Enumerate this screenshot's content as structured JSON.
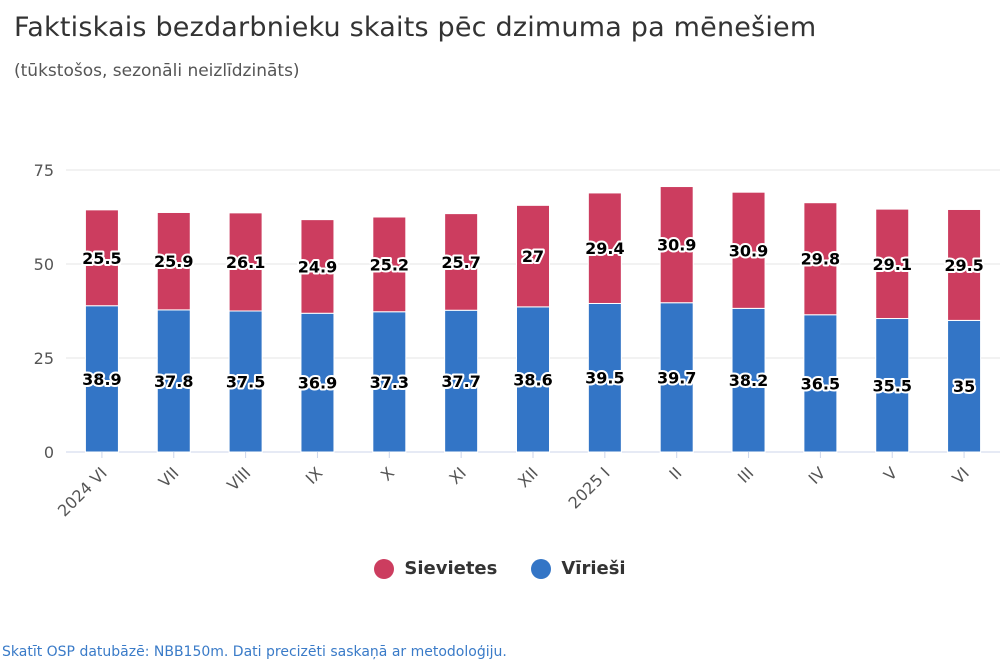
{
  "chart_data": {
    "type": "bar",
    "stacked": true,
    "title": "Faktiskais bezdarbnieku skaits pēc dzimuma pa mēnešiem",
    "subtitle": "(tūkstošos, sezonāli neizlīdzināts)",
    "categories": [
      "2024 VI",
      "VII",
      "VIII",
      "IX",
      "X",
      "XI",
      "XII",
      "2025 I",
      "II",
      "III",
      "IV",
      "V",
      "VI"
    ],
    "series": [
      {
        "name": "Vīrieši",
        "color": "#3375c6",
        "values": [
          38.9,
          37.8,
          37.5,
          36.9,
          37.3,
          37.7,
          38.6,
          39.5,
          39.7,
          38.2,
          36.5,
          35.5,
          35
        ]
      },
      {
        "name": "Sievietes",
        "color": "#cc3d5f",
        "values": [
          25.5,
          25.9,
          26.1,
          24.9,
          25.2,
          25.7,
          27,
          29.4,
          30.9,
          30.9,
          29.8,
          29.1,
          29.5
        ]
      }
    ],
    "yticks": [
      0,
      25,
      50,
      75
    ],
    "ylim": [
      0,
      75
    ],
    "grid": "horizontal",
    "legend_position": "bottom-center",
    "legend_order": [
      "Sievietes",
      "Vīrieši"
    ]
  },
  "source_note": "Skatīt OSP datubāzē: NBB150m. Dati precizēti saskaņā ar metodoloģiju."
}
